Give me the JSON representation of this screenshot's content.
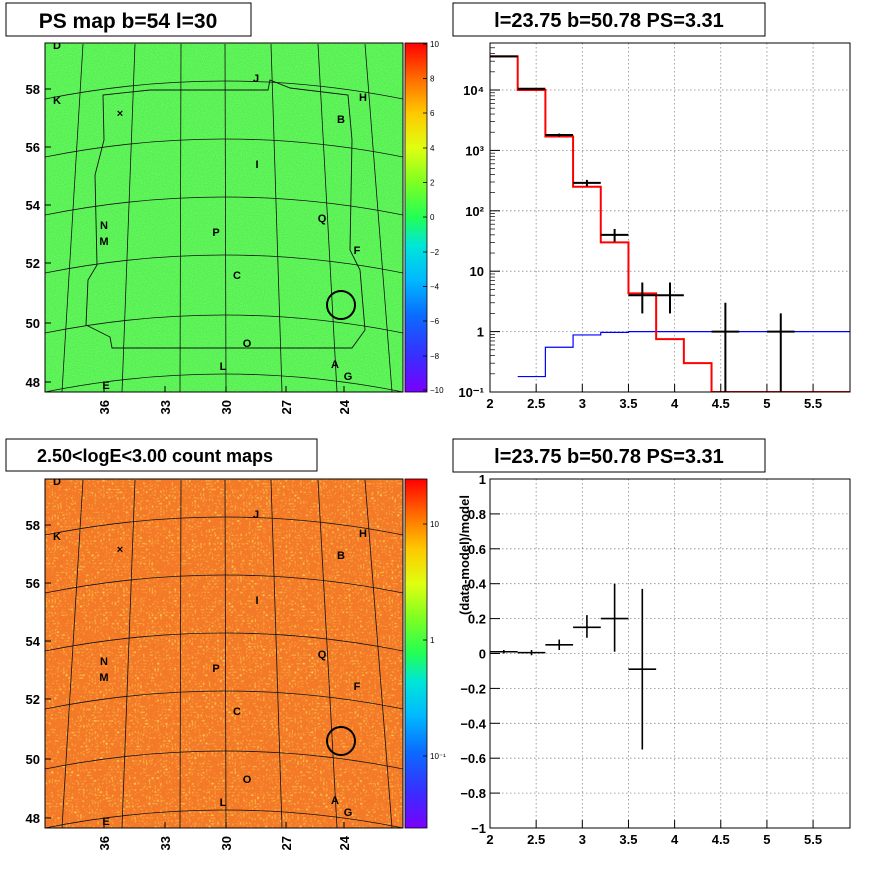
{
  "panels": {
    "ps_map": {
      "title": "PS map b=54 l=30"
    },
    "count_map": {
      "title": "2.50<logE<3.00 count maps"
    },
    "spectrum": {
      "title": "l=23.75 b=50.78 PS=3.31"
    },
    "residual": {
      "title": "l=23.75 b=50.78 PS=3.31"
    }
  },
  "maps": {
    "x_ticks": [
      "36",
      "33",
      "30",
      "27",
      "24"
    ],
    "y_ticks": [
      "48",
      "50",
      "52",
      "54",
      "56",
      "58"
    ],
    "markers": [
      {
        "label": "D"
      },
      {
        "label": "J"
      },
      {
        "label": "K"
      },
      {
        "label": "H"
      },
      {
        "label": "B"
      },
      {
        "label": "I"
      },
      {
        "label": "Q"
      },
      {
        "label": "N"
      },
      {
        "label": "M"
      },
      {
        "label": "P"
      },
      {
        "label": "F"
      },
      {
        "label": "C"
      },
      {
        "label": "O"
      },
      {
        "label": "L"
      },
      {
        "label": "A"
      },
      {
        "label": "G"
      },
      {
        "label": "E"
      }
    ],
    "ps_colorbar_ticks": [
      "10",
      "8",
      "6",
      "4",
      "2",
      "0",
      "−2",
      "−4",
      "−6",
      "−8",
      "−10"
    ],
    "count_colorbar_ticks": [
      "10",
      "1",
      "10⁻¹"
    ],
    "colors": {
      "ps_background": "#33ee44",
      "count_background": "#f47a28",
      "circle": "#000000"
    }
  },
  "chart_data": [
    {
      "type": "line",
      "panel": "spectrum",
      "title": "l=23.75 b=50.78 PS=3.31",
      "xlabel": "",
      "ylabel": "",
      "xlim": [
        2,
        5.9
      ],
      "ylim": [
        0.1,
        60000
      ],
      "yscale": "log",
      "grid": true,
      "x_ticks": [
        "2",
        "2.5",
        "3",
        "3.5",
        "4",
        "4.5",
        "5",
        "5.5"
      ],
      "y_ticks": [
        "10⁻¹",
        "1",
        "10",
        "10²",
        "10³",
        "10⁴"
      ],
      "series": [
        {
          "role": "data",
          "color": "#000000",
          "points": [
            {
              "x": 2.15,
              "y": 36000,
              "lo": 35000,
              "hi": 37000
            },
            {
              "x": 2.45,
              "y": 10500,
              "lo": 10300,
              "hi": 10700
            },
            {
              "x": 2.75,
              "y": 1800,
              "lo": 1700,
              "hi": 1900
            },
            {
              "x": 3.05,
              "y": 290,
              "lo": 255,
              "hi": 325
            },
            {
              "x": 3.35,
              "y": 40,
              "lo": 31,
              "hi": 50
            },
            {
              "x": 3.65,
              "y": 4,
              "lo": 2,
              "hi": 6.5
            },
            {
              "x": 3.95,
              "y": 4,
              "lo": 2,
              "hi": 6.5
            },
            {
              "x": 4.55,
              "y": 1,
              "lo": 0.1,
              "hi": 3
            },
            {
              "x": 5.15,
              "y": 1,
              "lo": 0.1,
              "hi": 2
            }
          ]
        },
        {
          "role": "model",
          "color": "#ff0000",
          "edges": [
            2.0,
            2.3,
            2.6,
            2.9,
            3.2,
            3.5,
            3.8,
            4.1,
            4.4,
            4.7,
            5.9
          ],
          "values": [
            36000,
            10000,
            1700,
            250,
            30,
            4.3,
            0.75,
            0.3,
            0.1,
            0.1
          ]
        },
        {
          "role": "background",
          "color": "#0000ff",
          "edges": [
            2.3,
            2.6,
            2.9,
            3.2,
            3.5,
            3.8,
            4.1,
            4.4,
            4.7,
            5.0,
            5.3,
            5.6,
            5.9
          ],
          "values": [
            0.18,
            0.55,
            0.88,
            0.97,
            1,
            1,
            1,
            1,
            1,
            1,
            1,
            1
          ]
        }
      ]
    },
    {
      "type": "scatter",
      "panel": "residual",
      "title": "l=23.75 b=50.78 PS=3.31",
      "xlabel": "",
      "ylabel": "(data-model)/model",
      "xlim": [
        2,
        5.9
      ],
      "ylim": [
        -1,
        1
      ],
      "grid": true,
      "x_ticks": [
        "2",
        "2.5",
        "3",
        "3.5",
        "4",
        "4.5",
        "5",
        "5.5"
      ],
      "y_ticks": [
        "−1",
        "−0.8",
        "−0.6",
        "−0.4",
        "−0.2",
        "0",
        "0.2",
        "0.4",
        "0.6",
        "0.8",
        "1"
      ],
      "points": [
        {
          "x": 2.15,
          "y": 0.01,
          "lo": 0.0,
          "hi": 0.02,
          "x0": 2.0,
          "x1": 2.3
        },
        {
          "x": 2.45,
          "y": 0.005,
          "lo": -0.01,
          "hi": 0.02,
          "x0": 2.3,
          "x1": 2.6
        },
        {
          "x": 2.75,
          "y": 0.05,
          "lo": 0.02,
          "hi": 0.08,
          "x0": 2.6,
          "x1": 2.9
        },
        {
          "x": 3.05,
          "y": 0.15,
          "lo": 0.09,
          "hi": 0.22,
          "x0": 2.9,
          "x1": 3.2
        },
        {
          "x": 3.35,
          "y": 0.2,
          "lo": 0.01,
          "hi": 0.4,
          "x0": 3.2,
          "x1": 3.5
        },
        {
          "x": 3.65,
          "y": -0.09,
          "lo": -0.55,
          "hi": 0.37,
          "x0": 3.5,
          "x1": 3.8
        }
      ]
    }
  ]
}
